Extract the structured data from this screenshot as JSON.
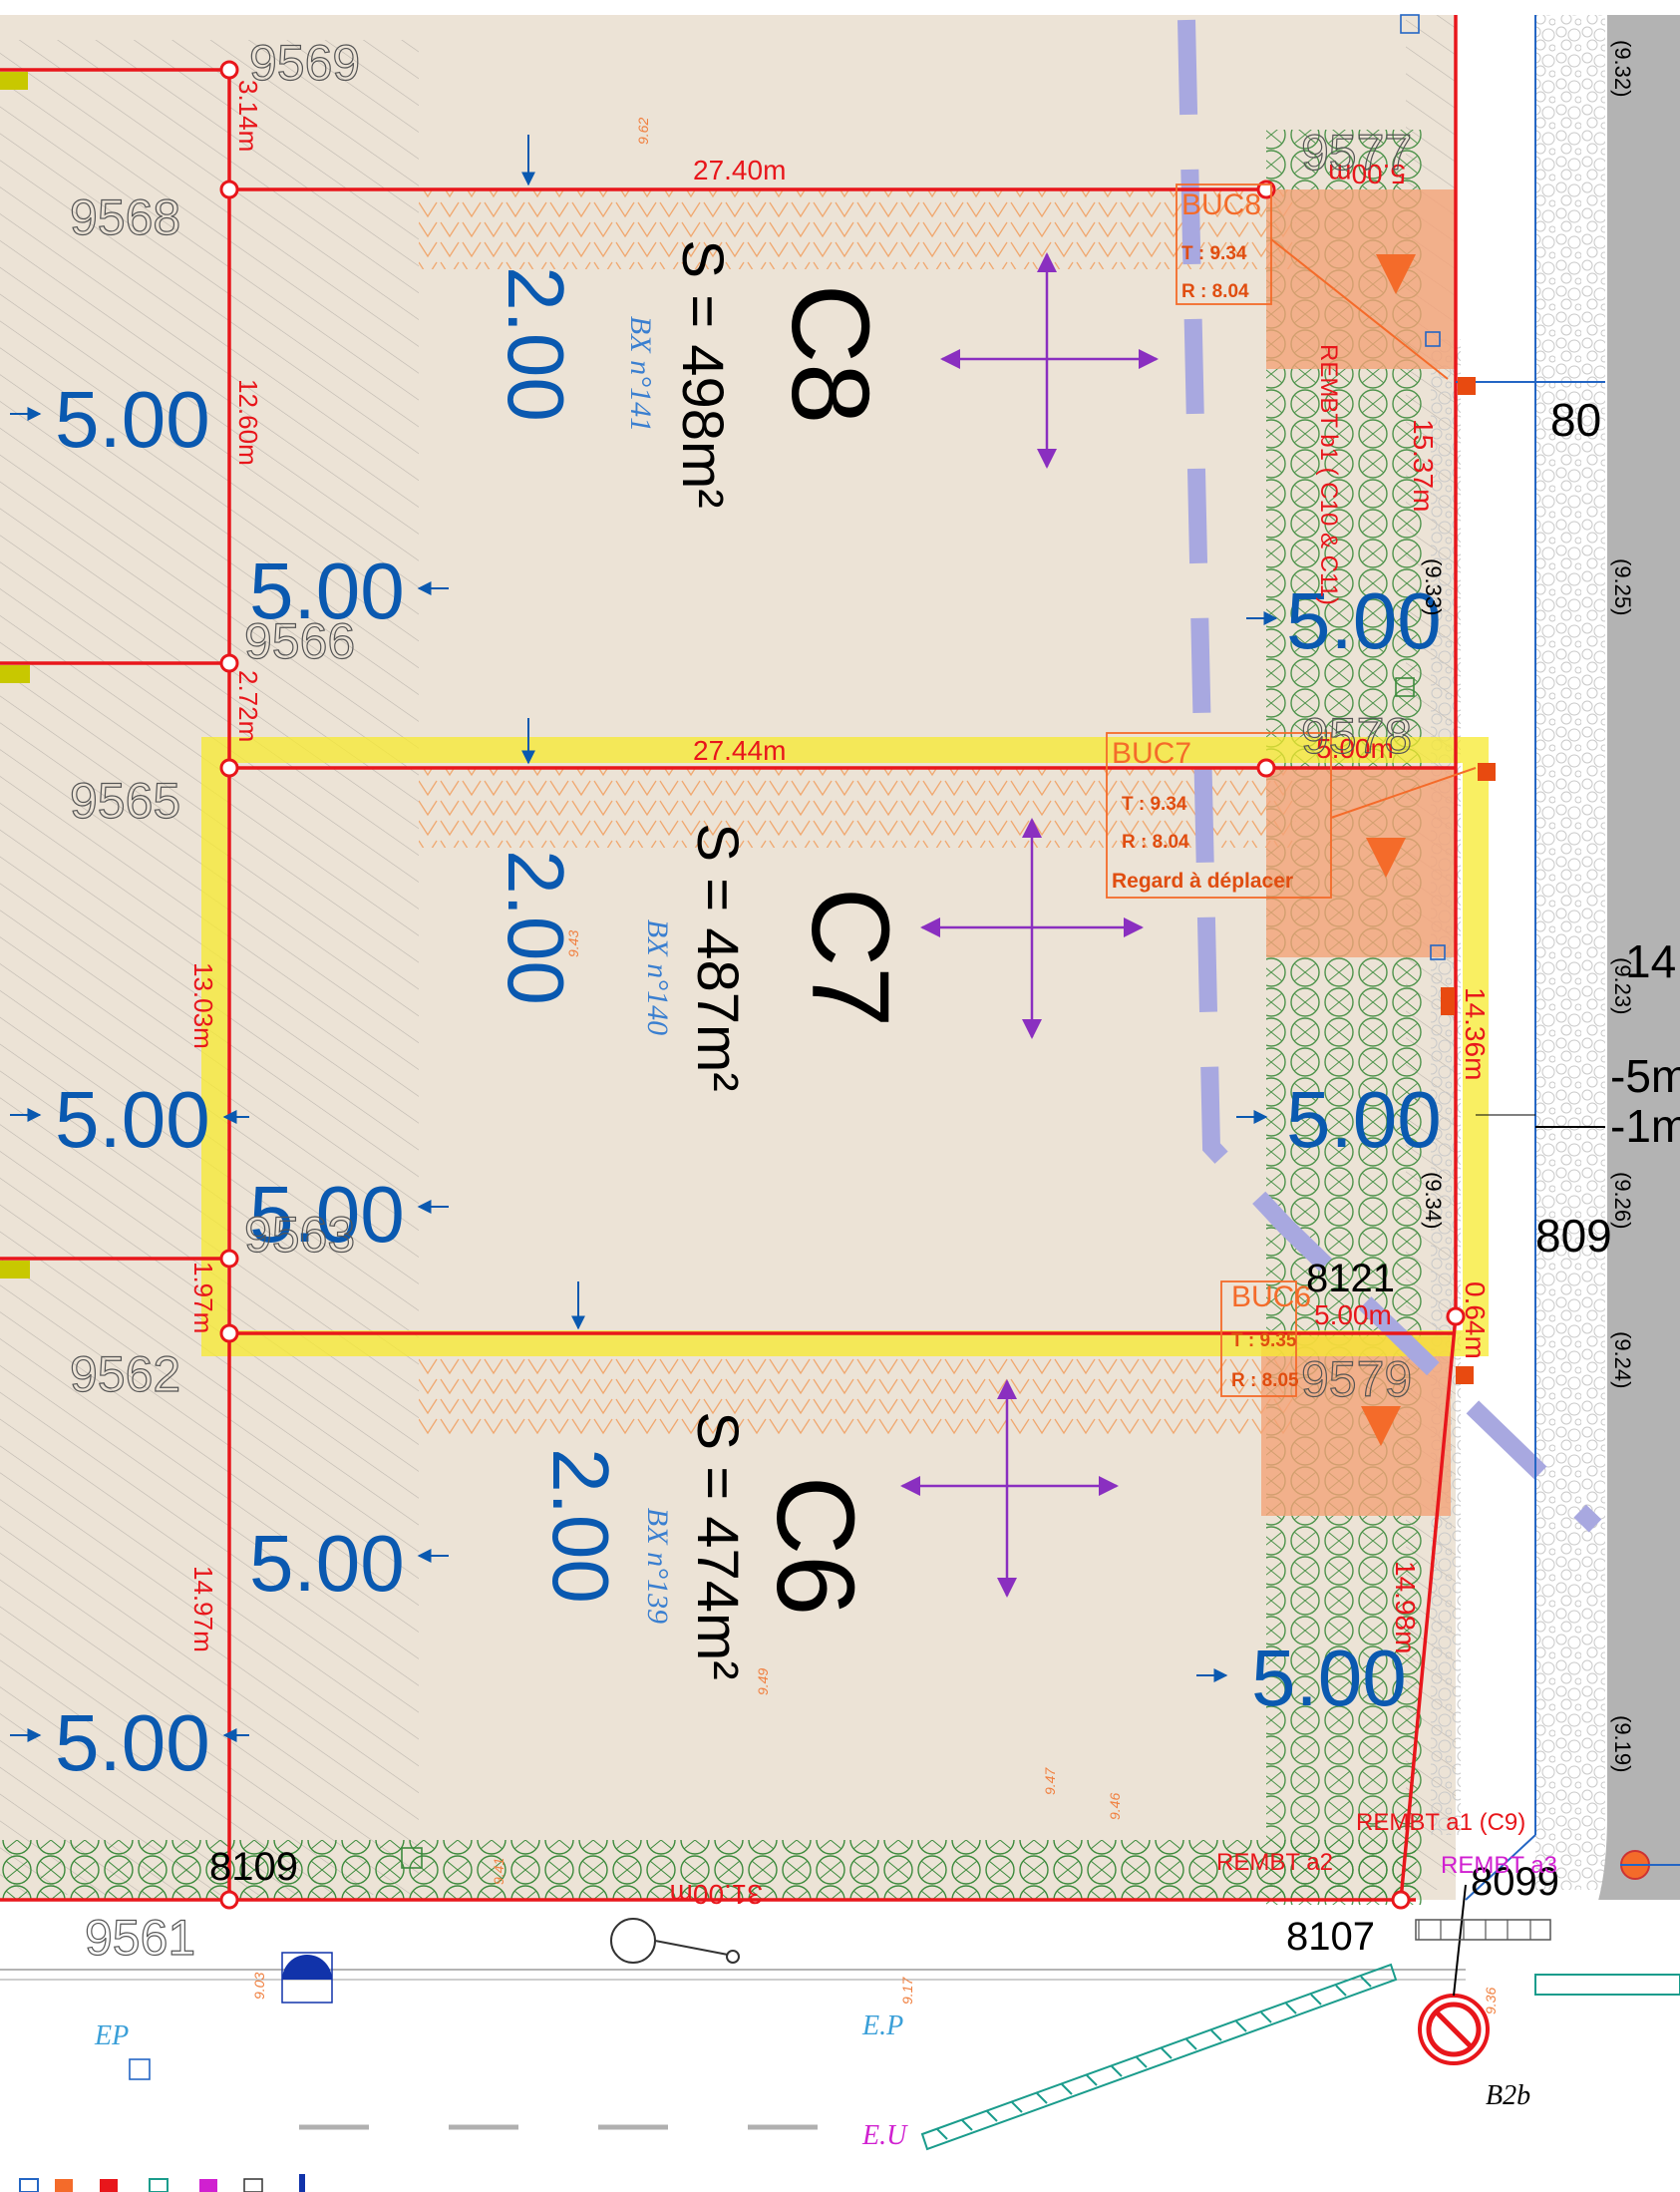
{
  "lots": [
    {
      "id": "C8",
      "area": "S = 498m²",
      "ref": "BX n°141"
    },
    {
      "id": "C7",
      "area": "S = 487m²",
      "ref": "BX n°140"
    },
    {
      "id": "C6",
      "area": "S = 474m²",
      "ref": "BX n°139"
    }
  ],
  "setbacks": {
    "rear": "5.00",
    "side": "2.00"
  },
  "dimensions": {
    "c8_width": "27.40m",
    "c7_width": "27.44m",
    "c6_width": "31.00m",
    "c8_front": "15.37m",
    "c7_front": "14.36m",
    "c6_front": "14.98m",
    "left_top": "3.14m",
    "left_c8": "12.60m",
    "left_mid": "2.72m",
    "left_c7": "13.03m",
    "left_low": "1.97m",
    "left_c6": "14.97m",
    "right_small": "0.64m",
    "buc_width_c8": "5.00m",
    "buc_width_c7": "5.00m",
    "buc_width_c6": "5.00m"
  },
  "parcel_numbers": {
    "p9569": "9569",
    "p9568": "9568",
    "p9566": "9566",
    "p9565": "9565",
    "p9563": "9563",
    "p9562": "9562",
    "p9561": "9561",
    "p9577": "9577",
    "p9578": "9578",
    "p9579": "9579"
  },
  "points": {
    "p8109": "8109",
    "p8107": "8107",
    "p8121": "8121",
    "p8099": "8099",
    "p80": "80",
    "p809": "809",
    "p14": "14"
  },
  "manholes": {
    "buc8": {
      "name": "BUC8",
      "t": "T : 9.34",
      "r": "R : 8.04"
    },
    "buc7": {
      "name": "BUC7",
      "t": "T : 9.34",
      "r": "R : 8.04",
      "note": "Regard à déplacer"
    },
    "buc6": {
      "name": "BUC6",
      "t": "T : 9.35",
      "r": "R : 8.05"
    }
  },
  "annotations": {
    "rembt_b1": "REMBT b1 ( C10 & C11)",
    "rembt_a1": "REMBT a1 (C9)",
    "rembt_a2": "REMBT a2",
    "rembt_a3": "REMBT a3",
    "ep1": "EP",
    "ep2": "E.P",
    "eu": "E.U",
    "sign": "B2b",
    "minus5": "-5m",
    "minus1": "-1m"
  },
  "levels": {
    "l925": "(9.25)",
    "l923": "(9.23)",
    "l926": "(9.26)",
    "l924": "(9.24)",
    "l919": "(9.19)",
    "l933": "(9.33)",
    "l934": "(9.34)",
    "l932": "(9.32)",
    "s962": "9.62",
    "s943": "9.43",
    "s949": "9.49",
    "s947": "9.47",
    "s946": "9.46",
    "s941": "9.41",
    "s903": "9.03",
    "s917": "9.17",
    "s936": "9.36"
  },
  "colors": {
    "parcel": "#ece3d6",
    "boundary": "#e8161b",
    "setback": "#0a59b0",
    "highlight": "#f7ea2d",
    "buc": "#f4a278",
    "arrows": "#8a2fc0",
    "road": "#b3b3b3"
  }
}
